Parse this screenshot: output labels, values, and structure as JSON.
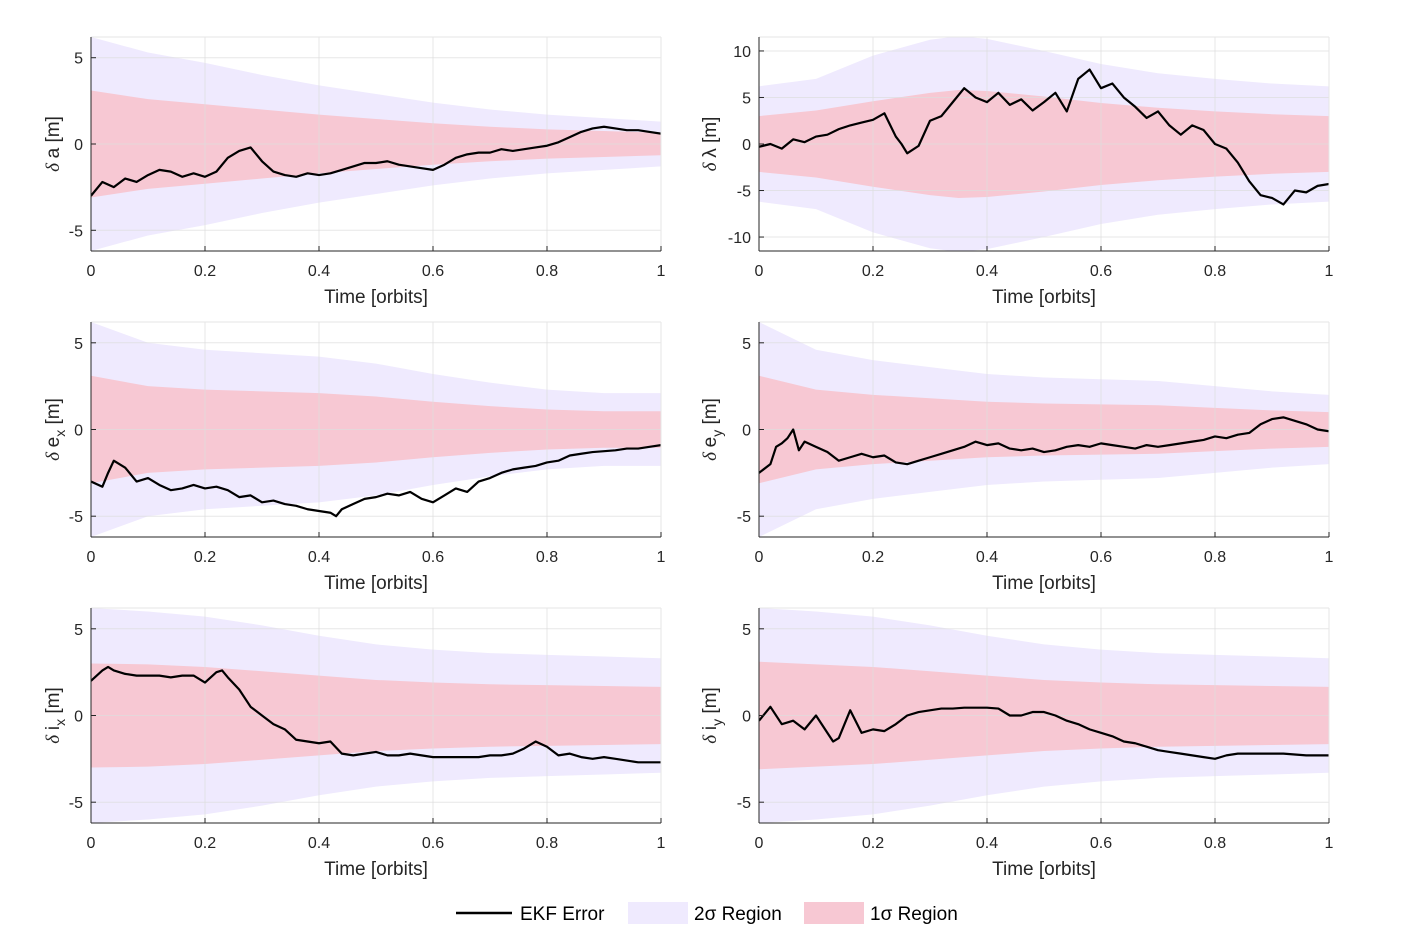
{
  "chart_data": [
    {
      "type": "line",
      "id": "a",
      "ylabel": {
        "symbol": "δ",
        "var": "a",
        "sub": "",
        "unit": "[m]"
      },
      "xlabel": "Time [orbits]",
      "xlim": [
        0,
        1
      ],
      "ylim": [
        -6.2,
        6.2
      ],
      "xticks": [
        "0",
        "0.2",
        "0.4",
        "0.6",
        "0.8",
        "1"
      ],
      "yticks": [
        -5,
        0,
        5
      ],
      "ytick_labels": [
        "-5",
        "0",
        "5"
      ],
      "grid": true,
      "sigma2": {
        "x": [
          0,
          0.1,
          0.2,
          0.3,
          0.4,
          0.5,
          0.6,
          0.7,
          0.8,
          0.9,
          1.0
        ],
        "upper": [
          6.2,
          5.3,
          4.7,
          4.0,
          3.4,
          2.9,
          2.4,
          2.0,
          1.7,
          1.5,
          1.3
        ]
      },
      "sigma1": {
        "x": [
          0,
          0.1,
          0.2,
          0.3,
          0.4,
          0.5,
          0.6,
          0.7,
          0.8,
          0.9,
          1.0
        ],
        "upper": [
          3.1,
          2.6,
          2.3,
          2.0,
          1.7,
          1.45,
          1.2,
          1.0,
          0.85,
          0.75,
          0.65
        ]
      },
      "ekf_error": {
        "x": [
          0,
          0.02,
          0.04,
          0.06,
          0.08,
          0.1,
          0.12,
          0.14,
          0.16,
          0.18,
          0.2,
          0.22,
          0.24,
          0.26,
          0.28,
          0.3,
          0.32,
          0.34,
          0.36,
          0.38,
          0.4,
          0.42,
          0.44,
          0.46,
          0.48,
          0.5,
          0.52,
          0.54,
          0.56,
          0.58,
          0.6,
          0.62,
          0.64,
          0.66,
          0.68,
          0.7,
          0.72,
          0.74,
          0.76,
          0.78,
          0.8,
          0.82,
          0.84,
          0.86,
          0.88,
          0.9,
          0.92,
          0.94,
          0.96,
          0.98,
          1.0
        ],
        "y": [
          -3.0,
          -2.2,
          -2.5,
          -2.0,
          -2.2,
          -1.8,
          -1.5,
          -1.6,
          -1.9,
          -1.7,
          -1.9,
          -1.6,
          -0.8,
          -0.4,
          -0.2,
          -1.0,
          -1.6,
          -1.8,
          -1.9,
          -1.7,
          -1.8,
          -1.7,
          -1.5,
          -1.3,
          -1.1,
          -1.1,
          -1.0,
          -1.2,
          -1.3,
          -1.4,
          -1.5,
          -1.2,
          -0.8,
          -0.6,
          -0.5,
          -0.5,
          -0.3,
          -0.4,
          -0.3,
          -0.2,
          -0.1,
          0.1,
          0.4,
          0.7,
          0.9,
          1.0,
          0.9,
          0.8,
          0.8,
          0.7,
          0.6
        ]
      }
    },
    {
      "type": "line",
      "id": "lambda",
      "ylabel": {
        "symbol": "δ",
        "var": "λ",
        "sub": "",
        "unit": "[m]"
      },
      "xlabel": "Time [orbits]",
      "xlim": [
        0,
        1
      ],
      "ylim": [
        -11.5,
        11.5
      ],
      "xticks": [
        "0",
        "0.2",
        "0.4",
        "0.6",
        "0.8",
        "1"
      ],
      "yticks": [
        -10,
        -5,
        0,
        5,
        10
      ],
      "ytick_labels": [
        "-10",
        "-5",
        "0",
        "5",
        "10"
      ],
      "grid": true,
      "sigma2": {
        "x": [
          0,
          0.1,
          0.2,
          0.3,
          0.35,
          0.4,
          0.5,
          0.6,
          0.7,
          0.8,
          0.9,
          1.0
        ],
        "upper": [
          6.2,
          7.0,
          9.5,
          11.2,
          11.6,
          11.3,
          10.0,
          8.6,
          7.6,
          7.0,
          6.5,
          6.2
        ]
      },
      "sigma1": {
        "x": [
          0,
          0.1,
          0.2,
          0.3,
          0.35,
          0.4,
          0.5,
          0.6,
          0.7,
          0.8,
          0.9,
          1.0
        ],
        "upper": [
          3.0,
          3.6,
          4.6,
          5.5,
          5.8,
          5.7,
          5.1,
          4.4,
          3.9,
          3.5,
          3.2,
          3.0
        ]
      },
      "ekf_error": {
        "x": [
          0,
          0.02,
          0.04,
          0.06,
          0.08,
          0.1,
          0.12,
          0.14,
          0.16,
          0.18,
          0.2,
          0.22,
          0.24,
          0.25,
          0.26,
          0.28,
          0.3,
          0.32,
          0.34,
          0.36,
          0.38,
          0.4,
          0.42,
          0.44,
          0.46,
          0.48,
          0.5,
          0.52,
          0.54,
          0.56,
          0.58,
          0.6,
          0.62,
          0.64,
          0.66,
          0.68,
          0.7,
          0.72,
          0.74,
          0.76,
          0.78,
          0.8,
          0.82,
          0.84,
          0.86,
          0.88,
          0.9,
          0.92,
          0.94,
          0.96,
          0.98,
          1.0
        ],
        "y": [
          -0.3,
          0.0,
          -0.5,
          0.5,
          0.2,
          0.8,
          1.0,
          1.6,
          2.0,
          2.3,
          2.6,
          3.3,
          0.8,
          0.0,
          -1.0,
          -0.2,
          2.5,
          3.0,
          4.5,
          6.0,
          5.0,
          4.5,
          5.5,
          4.2,
          4.8,
          3.6,
          4.5,
          5.5,
          3.5,
          7.0,
          8.0,
          6.0,
          6.5,
          5.0,
          4.0,
          2.8,
          3.5,
          2.0,
          1.0,
          2.0,
          1.5,
          0.0,
          -0.5,
          -2.0,
          -4.0,
          -5.5,
          -5.8,
          -6.5,
          -5.0,
          -5.2,
          -4.5,
          -4.3
        ]
      }
    },
    {
      "type": "line",
      "id": "ex",
      "ylabel": {
        "symbol": "δ",
        "var": "e",
        "sub": "x",
        "unit": "[m]"
      },
      "xlabel": "Time [orbits]",
      "xlim": [
        0,
        1
      ],
      "ylim": [
        -6.2,
        6.2
      ],
      "xticks": [
        "0",
        "0.2",
        "0.4",
        "0.6",
        "0.8",
        "1"
      ],
      "yticks": [
        -5,
        0,
        5
      ],
      "ytick_labels": [
        "-5",
        "0",
        "5"
      ],
      "grid": true,
      "sigma2": {
        "x": [
          0,
          0.1,
          0.2,
          0.3,
          0.4,
          0.5,
          0.6,
          0.7,
          0.8,
          0.9,
          1.0
        ],
        "upper": [
          6.2,
          5.0,
          4.6,
          4.4,
          4.2,
          3.8,
          3.2,
          2.7,
          2.3,
          2.1,
          2.1
        ]
      },
      "sigma1": {
        "x": [
          0,
          0.1,
          0.2,
          0.3,
          0.4,
          0.5,
          0.6,
          0.7,
          0.8,
          0.9,
          1.0
        ],
        "upper": [
          3.1,
          2.5,
          2.3,
          2.2,
          2.1,
          1.9,
          1.6,
          1.35,
          1.15,
          1.05,
          1.05
        ]
      },
      "ekf_error": {
        "x": [
          0,
          0.02,
          0.03,
          0.04,
          0.06,
          0.08,
          0.1,
          0.12,
          0.14,
          0.16,
          0.18,
          0.2,
          0.22,
          0.24,
          0.26,
          0.28,
          0.3,
          0.32,
          0.34,
          0.36,
          0.38,
          0.4,
          0.42,
          0.43,
          0.44,
          0.46,
          0.48,
          0.5,
          0.52,
          0.54,
          0.56,
          0.58,
          0.6,
          0.62,
          0.64,
          0.66,
          0.68,
          0.7,
          0.72,
          0.74,
          0.76,
          0.78,
          0.8,
          0.82,
          0.84,
          0.86,
          0.88,
          0.9,
          0.92,
          0.94,
          0.96,
          0.98,
          1.0
        ],
        "y": [
          -3.0,
          -3.3,
          -2.5,
          -1.8,
          -2.2,
          -3.0,
          -2.8,
          -3.2,
          -3.5,
          -3.4,
          -3.2,
          -3.4,
          -3.3,
          -3.5,
          -3.9,
          -3.8,
          -4.2,
          -4.1,
          -4.3,
          -4.4,
          -4.6,
          -4.7,
          -4.8,
          -5.0,
          -4.6,
          -4.3,
          -4.0,
          -3.9,
          -3.7,
          -3.8,
          -3.6,
          -4.0,
          -4.2,
          -3.8,
          -3.4,
          -3.6,
          -3.0,
          -2.8,
          -2.5,
          -2.3,
          -2.2,
          -2.1,
          -1.9,
          -1.8,
          -1.5,
          -1.4,
          -1.3,
          -1.25,
          -1.2,
          -1.1,
          -1.1,
          -1.0,
          -0.9
        ]
      }
    },
    {
      "type": "line",
      "id": "ey",
      "ylabel": {
        "symbol": "δ",
        "var": "e",
        "sub": "y",
        "unit": "[m]"
      },
      "xlabel": "Time [orbits]",
      "xlim": [
        0,
        1
      ],
      "ylim": [
        -6.2,
        6.2
      ],
      "xticks": [
        "0",
        "0.2",
        "0.4",
        "0.6",
        "0.8",
        "1"
      ],
      "yticks": [
        -5,
        0,
        5
      ],
      "ytick_labels": [
        "-5",
        "0",
        "5"
      ],
      "grid": true,
      "sigma2": {
        "x": [
          0,
          0.1,
          0.2,
          0.3,
          0.4,
          0.5,
          0.6,
          0.7,
          0.8,
          0.9,
          1.0
        ],
        "upper": [
          6.2,
          4.6,
          4.0,
          3.6,
          3.2,
          3.0,
          2.9,
          2.8,
          2.5,
          2.2,
          2.0
        ]
      },
      "sigma1": {
        "x": [
          0,
          0.1,
          0.2,
          0.3,
          0.4,
          0.5,
          0.6,
          0.7,
          0.8,
          0.9,
          1.0
        ],
        "upper": [
          3.1,
          2.3,
          2.0,
          1.8,
          1.6,
          1.5,
          1.45,
          1.4,
          1.25,
          1.1,
          1.0
        ]
      },
      "ekf_error": {
        "x": [
          0,
          0.02,
          0.03,
          0.04,
          0.05,
          0.06,
          0.07,
          0.08,
          0.1,
          0.12,
          0.14,
          0.16,
          0.18,
          0.2,
          0.22,
          0.24,
          0.26,
          0.28,
          0.3,
          0.32,
          0.34,
          0.36,
          0.38,
          0.4,
          0.42,
          0.44,
          0.46,
          0.48,
          0.5,
          0.52,
          0.54,
          0.56,
          0.58,
          0.6,
          0.62,
          0.64,
          0.66,
          0.68,
          0.7,
          0.72,
          0.74,
          0.76,
          0.78,
          0.8,
          0.82,
          0.84,
          0.86,
          0.88,
          0.9,
          0.92,
          0.94,
          0.96,
          0.98,
          1.0
        ],
        "y": [
          -2.5,
          -2.0,
          -1.0,
          -0.8,
          -0.5,
          0.0,
          -1.2,
          -0.7,
          -1.0,
          -1.3,
          -1.8,
          -1.6,
          -1.4,
          -1.6,
          -1.5,
          -1.9,
          -2.0,
          -1.8,
          -1.6,
          -1.4,
          -1.2,
          -1.0,
          -0.7,
          -0.9,
          -0.8,
          -1.1,
          -1.2,
          -1.1,
          -1.3,
          -1.2,
          -1.0,
          -0.9,
          -1.0,
          -0.8,
          -0.9,
          -1.0,
          -1.1,
          -0.9,
          -1.0,
          -0.9,
          -0.8,
          -0.7,
          -0.6,
          -0.4,
          -0.5,
          -0.3,
          -0.2,
          0.3,
          0.6,
          0.7,
          0.5,
          0.3,
          0.0,
          -0.1
        ]
      }
    },
    {
      "type": "line",
      "id": "ix",
      "ylabel": {
        "symbol": "δ",
        "var": "i",
        "sub": "x",
        "unit": "[m]"
      },
      "xlabel": "Time [orbits]",
      "xlim": [
        0,
        1
      ],
      "ylim": [
        -6.2,
        6.2
      ],
      "xticks": [
        "0",
        "0.2",
        "0.4",
        "0.6",
        "0.8",
        "1"
      ],
      "yticks": [
        -5,
        0,
        5
      ],
      "ytick_labels": [
        "-5",
        "0",
        "5"
      ],
      "grid": true,
      "sigma2": {
        "x": [
          0,
          0.1,
          0.2,
          0.3,
          0.4,
          0.5,
          0.6,
          0.7,
          0.8,
          0.9,
          1.0
        ],
        "upper": [
          6.2,
          6.0,
          5.7,
          5.2,
          4.6,
          4.1,
          3.8,
          3.6,
          3.5,
          3.4,
          3.3
        ]
      },
      "sigma1": {
        "x": [
          0,
          0.1,
          0.2,
          0.3,
          0.4,
          0.5,
          0.6,
          0.7,
          0.8,
          0.9,
          1.0
        ],
        "upper": [
          3.0,
          2.95,
          2.8,
          2.55,
          2.3,
          2.05,
          1.9,
          1.8,
          1.75,
          1.7,
          1.65
        ]
      },
      "ekf_error": {
        "x": [
          0,
          0.02,
          0.03,
          0.04,
          0.06,
          0.08,
          0.1,
          0.12,
          0.14,
          0.16,
          0.18,
          0.2,
          0.22,
          0.23,
          0.24,
          0.26,
          0.28,
          0.3,
          0.32,
          0.34,
          0.36,
          0.38,
          0.4,
          0.42,
          0.44,
          0.46,
          0.48,
          0.5,
          0.52,
          0.54,
          0.56,
          0.58,
          0.6,
          0.62,
          0.64,
          0.66,
          0.68,
          0.7,
          0.72,
          0.74,
          0.76,
          0.78,
          0.8,
          0.82,
          0.84,
          0.86,
          0.88,
          0.9,
          0.92,
          0.94,
          0.96,
          0.98,
          1.0
        ],
        "y": [
          2.0,
          2.6,
          2.8,
          2.6,
          2.4,
          2.3,
          2.3,
          2.3,
          2.2,
          2.3,
          2.3,
          1.9,
          2.5,
          2.6,
          2.2,
          1.5,
          0.5,
          0.0,
          -0.5,
          -0.8,
          -1.4,
          -1.5,
          -1.6,
          -1.5,
          -2.2,
          -2.3,
          -2.2,
          -2.1,
          -2.3,
          -2.3,
          -2.2,
          -2.3,
          -2.4,
          -2.4,
          -2.4,
          -2.4,
          -2.4,
          -2.3,
          -2.3,
          -2.2,
          -1.9,
          -1.5,
          -1.8,
          -2.3,
          -2.2,
          -2.4,
          -2.5,
          -2.4,
          -2.5,
          -2.6,
          -2.7,
          -2.7,
          -2.7
        ]
      }
    },
    {
      "type": "line",
      "id": "iy",
      "ylabel": {
        "symbol": "δ",
        "var": "i",
        "sub": "y",
        "unit": "[m]"
      },
      "xlabel": "Time [orbits]",
      "xlim": [
        0,
        1
      ],
      "ylim": [
        -6.2,
        6.2
      ],
      "xticks": [
        "0",
        "0.2",
        "0.4",
        "0.6",
        "0.8",
        "1"
      ],
      "yticks": [
        -5,
        0,
        5
      ],
      "ytick_labels": [
        "-5",
        "0",
        "5"
      ],
      "grid": true,
      "sigma2": {
        "x": [
          0,
          0.1,
          0.2,
          0.3,
          0.4,
          0.5,
          0.6,
          0.7,
          0.8,
          0.9,
          1.0
        ],
        "upper": [
          6.2,
          6.0,
          5.7,
          5.2,
          4.6,
          4.1,
          3.8,
          3.6,
          3.5,
          3.4,
          3.3
        ]
      },
      "sigma1": {
        "x": [
          0,
          0.1,
          0.2,
          0.3,
          0.4,
          0.5,
          0.6,
          0.7,
          0.8,
          0.9,
          1.0
        ],
        "upper": [
          3.1,
          2.95,
          2.8,
          2.55,
          2.3,
          2.05,
          1.9,
          1.8,
          1.75,
          1.7,
          1.65
        ]
      },
      "ekf_error": {
        "x": [
          0,
          0.02,
          0.04,
          0.06,
          0.08,
          0.1,
          0.12,
          0.13,
          0.14,
          0.15,
          0.16,
          0.18,
          0.2,
          0.22,
          0.24,
          0.26,
          0.28,
          0.3,
          0.32,
          0.34,
          0.36,
          0.38,
          0.4,
          0.42,
          0.44,
          0.46,
          0.48,
          0.5,
          0.52,
          0.54,
          0.56,
          0.58,
          0.6,
          0.62,
          0.64,
          0.66,
          0.68,
          0.7,
          0.72,
          0.74,
          0.76,
          0.78,
          0.8,
          0.82,
          0.84,
          0.86,
          0.88,
          0.9,
          0.92,
          0.94,
          0.96,
          0.98,
          1.0
        ],
        "y": [
          -0.3,
          0.5,
          -0.5,
          -0.3,
          -0.8,
          0.0,
          -1.0,
          -1.5,
          -1.3,
          -0.5,
          0.3,
          -1.0,
          -0.8,
          -0.9,
          -0.5,
          0.0,
          0.2,
          0.3,
          0.4,
          0.4,
          0.45,
          0.45,
          0.45,
          0.4,
          0.0,
          0.0,
          0.2,
          0.2,
          0.0,
          -0.3,
          -0.5,
          -0.8,
          -1.0,
          -1.2,
          -1.5,
          -1.6,
          -1.8,
          -2.0,
          -2.1,
          -2.2,
          -2.3,
          -2.4,
          -2.5,
          -2.3,
          -2.2,
          -2.2,
          -2.2,
          -2.2,
          -2.2,
          -2.25,
          -2.3,
          -2.3,
          -2.3
        ]
      }
    }
  ],
  "legend": {
    "placement": "bottom-center",
    "entries": [
      {
        "label": "EKF Error",
        "color": "#000000",
        "kind": "line"
      },
      {
        "label": "2σ Region",
        "color": "#efeafe",
        "kind": "patch"
      },
      {
        "label": "1σ Region",
        "color": "#f7c8d3",
        "kind": "patch"
      }
    ]
  },
  "colors": {
    "sigma2": "#efeafe",
    "sigma1": "#f7c8d3",
    "ekf": "#000000",
    "axis": "#262626",
    "grid": "#dddddd"
  }
}
